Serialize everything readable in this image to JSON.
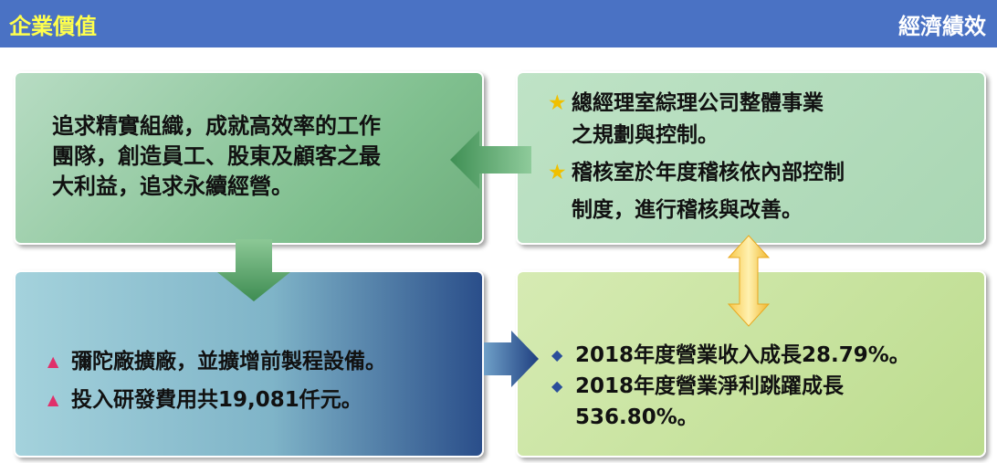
{
  "header": {
    "title": "企業價值",
    "section": "經濟績效"
  },
  "boxes": {
    "mission": {
      "lines": [
        "追求精實組織，成就高效率的工作",
        "團隊，創造員工、股東及顧客之最",
        "大利益，追求永續經營。"
      ]
    },
    "control": {
      "items": [
        [
          "總經理室綜理公司整體事業",
          "之規劃與控制。"
        ],
        [
          "稽核室於年度稽核依內部控制",
          "制度，進行稽核與改善。"
        ]
      ]
    },
    "investment": {
      "items": [
        "彌陀廠擴廠，並擴增前製程設備。",
        "投入研發費用共19,081仟元。"
      ]
    },
    "performance": {
      "items": [
        [
          "2018年度營業收入成長28.79%。"
        ],
        [
          "2018年度營業淨利跳躍成長",
          "536.80%。"
        ]
      ]
    }
  }
}
